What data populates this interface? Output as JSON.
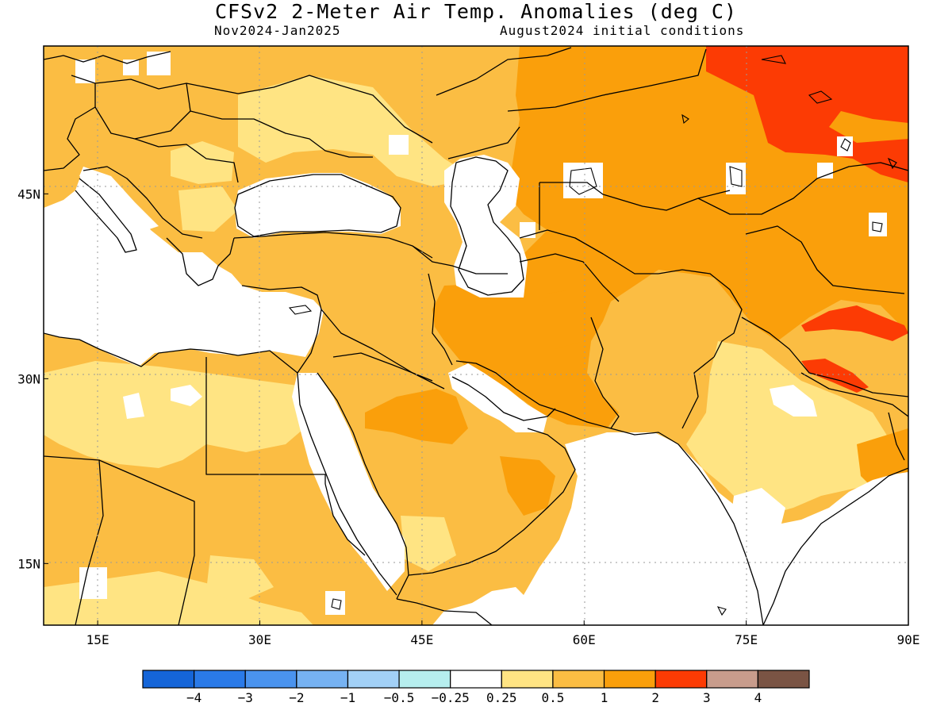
{
  "title": "CFSv2 2-Meter Air Temp. Anomalies (deg C)",
  "subtitle_left": "Nov2024-Jan2025",
  "subtitle_right": "August2024 initial conditions",
  "map": {
    "lon_range": [
      10,
      90
    ],
    "lat_range": [
      10,
      57
    ],
    "lon_ticks": [
      {
        "value": 15,
        "label": "15E"
      },
      {
        "value": 30,
        "label": "30E"
      },
      {
        "value": 45,
        "label": "45E"
      },
      {
        "value": 60,
        "label": "60E"
      },
      {
        "value": 75,
        "label": "75E"
      },
      {
        "value": 90,
        "label": "90E"
      }
    ],
    "lat_ticks": [
      {
        "value": 45,
        "label": "45N"
      },
      {
        "value": 30,
        "label": "30N"
      },
      {
        "value": 15,
        "label": "15N"
      }
    ],
    "grid": "dotted"
  },
  "colorbar": {
    "labels": [
      "−4",
      "−3",
      "−2",
      "−1",
      "−0.5",
      "−0.25",
      "0.25",
      "0.5",
      "1",
      "2",
      "3",
      "4"
    ],
    "colors": [
      "#1565d8",
      "#2a7ae8",
      "#4a93ee",
      "#76b2f2",
      "#a2d0f6",
      "#b6eeee",
      "#ffffff",
      "#ffe483",
      "#fbbd43",
      "#fa9f0b",
      "#fc3b04",
      "#c89c8c",
      "#7a5444"
    ]
  }
}
